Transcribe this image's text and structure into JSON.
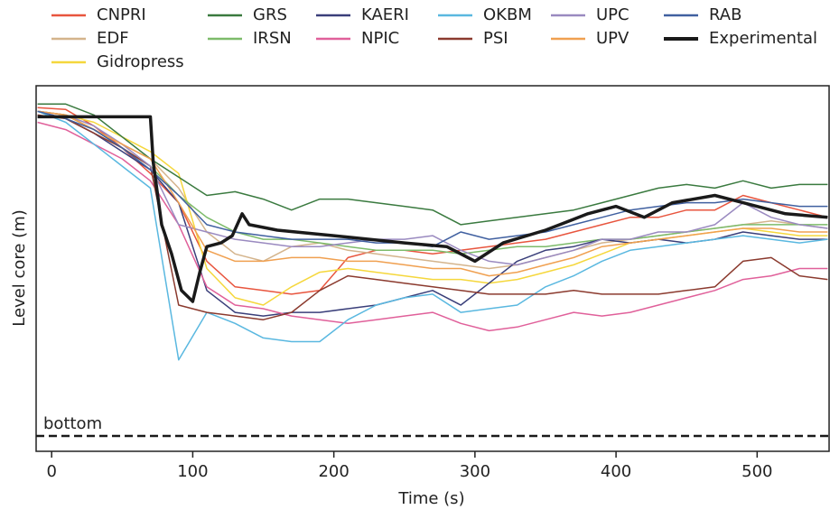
{
  "chart_data": {
    "type": "line",
    "x_label": "Time (s)",
    "y_label": "Level core (m)",
    "xlim": [
      -11,
      551
    ],
    "ylim": [
      0,
      100
    ],
    "xticks": [
      0,
      100,
      200,
      300,
      400,
      500
    ],
    "bottom_line": {
      "label": "bottom",
      "value": 4.2,
      "color": "#1a1a1a"
    },
    "x": [
      -10,
      10,
      30,
      50,
      70,
      90,
      110,
      130,
      150,
      170,
      190,
      210,
      230,
      250,
      270,
      290,
      310,
      330,
      350,
      370,
      390,
      410,
      430,
      450,
      470,
      490,
      510,
      530,
      550
    ],
    "series": [
      {
        "name": "CNPRI",
        "color": "#e8553e",
        "values": [
          94,
          93.5,
          89,
          83,
          76,
          68,
          52,
          45,
          44,
          43,
          44,
          53,
          55,
          55,
          54,
          55,
          56,
          57,
          58,
          60,
          62,
          64,
          64,
          66,
          66,
          70,
          68,
          66,
          64
        ]
      },
      {
        "name": "EDF",
        "color": "#d4b48c",
        "values": [
          93,
          92,
          88,
          84,
          80,
          72,
          60,
          54,
          52,
          56,
          57,
          55,
          54,
          53,
          52,
          51,
          50,
          51,
          53,
          55,
          57,
          58,
          59,
          60,
          61,
          62,
          63,
          62,
          61
        ]
      },
      {
        "name": "Gidropress",
        "color": "#f5d73c",
        "values": [
          93,
          92,
          90,
          86,
          82,
          76,
          50,
          42,
          40,
          45,
          49,
          50,
          49,
          48,
          47,
          47,
          46,
          47,
          49,
          51,
          54,
          57,
          58,
          59,
          60,
          61,
          60,
          59,
          59
        ]
      },
      {
        "name": "GRS",
        "color": "#3a7a3f",
        "values": [
          95,
          95,
          92,
          86,
          80,
          75,
          70,
          71,
          69,
          66,
          69,
          69,
          68,
          67,
          66,
          62,
          63,
          64,
          65,
          66,
          68,
          70,
          72,
          73,
          72,
          74,
          72,
          73,
          73
        ]
      },
      {
        "name": "IRSN",
        "color": "#7dbb6a",
        "values": [
          93,
          92,
          88,
          83,
          78,
          70,
          64,
          60,
          58,
          58,
          57,
          56,
          55,
          55,
          55,
          54,
          55,
          56,
          56,
          57,
          58,
          58,
          59,
          60,
          61,
          62,
          62,
          62,
          62
        ]
      },
      {
        "name": "KAERI",
        "color": "#3a3f7a",
        "values": [
          93,
          91,
          87,
          82,
          77,
          68,
          44,
          38,
          37,
          38,
          38,
          39,
          40,
          42,
          44,
          40,
          46,
          52,
          55,
          56,
          58,
          57,
          58,
          57,
          58,
          60,
          59,
          58,
          58
        ]
      },
      {
        "name": "NPIC",
        "color": "#e0609a",
        "values": [
          90,
          88,
          84,
          80,
          74,
          62,
          45,
          40,
          39,
          37,
          36,
          35,
          36,
          37,
          38,
          35,
          33,
          34,
          36,
          38,
          37,
          38,
          40,
          42,
          44,
          47,
          48,
          50,
          50
        ]
      },
      {
        "name": "OKBM",
        "color": "#5ab8e0",
        "values": [
          93,
          90,
          84,
          78,
          72,
          25,
          38,
          35,
          31,
          30,
          30,
          36,
          40,
          42,
          43,
          38,
          39,
          40,
          45,
          48,
          52,
          55,
          56,
          57,
          58,
          59,
          58,
          57,
          58
        ]
      },
      {
        "name": "PSI",
        "color": "#8b3a2e",
        "values": [
          92,
          91,
          87,
          83,
          78,
          40,
          38,
          37,
          36,
          38,
          44,
          48,
          47,
          46,
          45,
          44,
          43,
          43,
          43,
          44,
          43,
          43,
          43,
          44,
          45,
          52,
          53,
          48,
          47
        ]
      },
      {
        "name": "UPC",
        "color": "#9a8ac0",
        "values": [
          93,
          92,
          89,
          84,
          78,
          62,
          60,
          58,
          57,
          56,
          56,
          57,
          58,
          58,
          59,
          55,
          52,
          51,
          53,
          55,
          58,
          58,
          60,
          60,
          62,
          68,
          64,
          62,
          61
        ]
      },
      {
        "name": "UPV",
        "color": "#f0a050",
        "values": [
          93,
          92,
          88,
          84,
          80,
          68,
          55,
          52,
          52,
          53,
          53,
          52,
          52,
          51,
          50,
          50,
          48,
          49,
          51,
          53,
          56,
          57,
          58,
          59,
          60,
          61,
          61,
          60,
          60
        ]
      },
      {
        "name": "RAB",
        "color": "#4060a0",
        "values": [
          93,
          91,
          88,
          83,
          77,
          70,
          62,
          60,
          59,
          58,
          58,
          58,
          57,
          57,
          56,
          60,
          58,
          59,
          60,
          62,
          64,
          66,
          67,
          68,
          68,
          69,
          68,
          67,
          67
        ]
      },
      {
        "name": "Experimental",
        "color": "#1a1a1a",
        "x": [
          -10,
          70,
          72,
          78,
          85,
          92,
          100,
          105,
          110,
          120,
          128,
          135,
          140,
          160,
          200,
          250,
          280,
          300,
          320,
          350,
          380,
          400,
          420,
          440,
          470,
          490,
          520,
          550
        ],
        "values": [
          91.5,
          91.5,
          79,
          62,
          54,
          44,
          41,
          49,
          56,
          57,
          59,
          65,
          62,
          60.5,
          59,
          57,
          56,
          52,
          57,
          60.5,
          65,
          67,
          64,
          68,
          70,
          68,
          65,
          64
        ]
      }
    ]
  }
}
